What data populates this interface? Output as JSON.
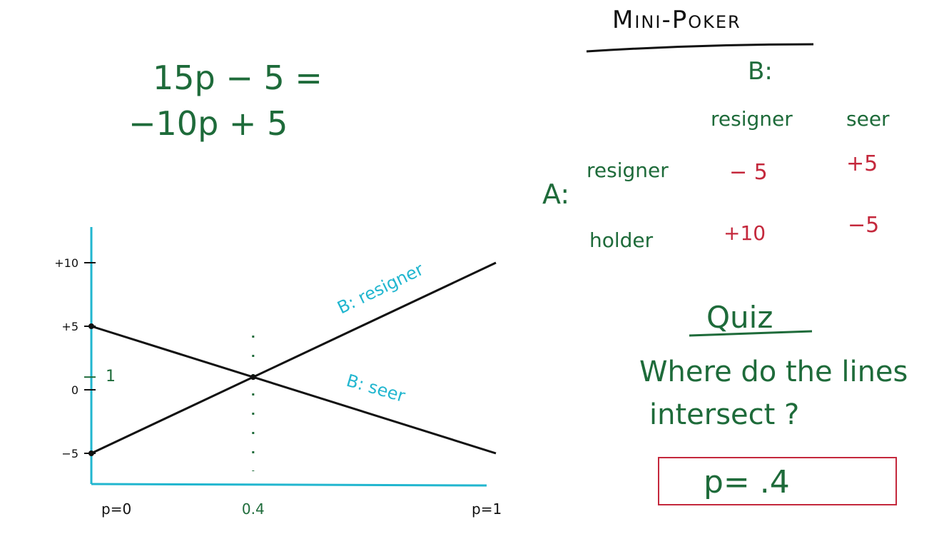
{
  "title": "Mini-Poker",
  "equation": {
    "line1": "15p − 5 =",
    "line2": "−10p + 5"
  },
  "table": {
    "col_player": "B:",
    "row_player": "A:",
    "col_headers": [
      "resigner",
      "seer"
    ],
    "rows": [
      {
        "label": "resigner",
        "values": [
          "− 5",
          "+5"
        ]
      },
      {
        "label": "holder",
        "values": [
          "+10",
          "−5"
        ]
      }
    ]
  },
  "quiz": {
    "title": "Quiz",
    "question_line1": "Where do the lines",
    "question_line2": "intersect ?",
    "answer": "p= .4"
  },
  "chart_data": {
    "type": "line",
    "x_range": [
      0,
      1
    ],
    "y_ticks": [
      {
        "value": 10,
        "label": "+10"
      },
      {
        "value": 5,
        "label": "+5"
      },
      {
        "value": 1,
        "label": "1"
      },
      {
        "value": 0,
        "label": "0"
      },
      {
        "value": -5,
        "label": "−5"
      }
    ],
    "x_ticks": [
      {
        "value": 0,
        "label": "p=0"
      },
      {
        "value": 0.4,
        "label": "0.4"
      },
      {
        "value": 1,
        "label": "p=1"
      }
    ],
    "series": [
      {
        "name": "B: resigner",
        "x": [
          0,
          1
        ],
        "y": [
          -5,
          10
        ]
      },
      {
        "name": "B: seer",
        "x": [
          0,
          1
        ],
        "y": [
          5,
          -5
        ]
      }
    ],
    "intersection": {
      "x": 0.4,
      "y": 1
    },
    "colors": {
      "axis": "#21b6cf",
      "lines": "#111111",
      "labels": "#21b6cf"
    }
  }
}
